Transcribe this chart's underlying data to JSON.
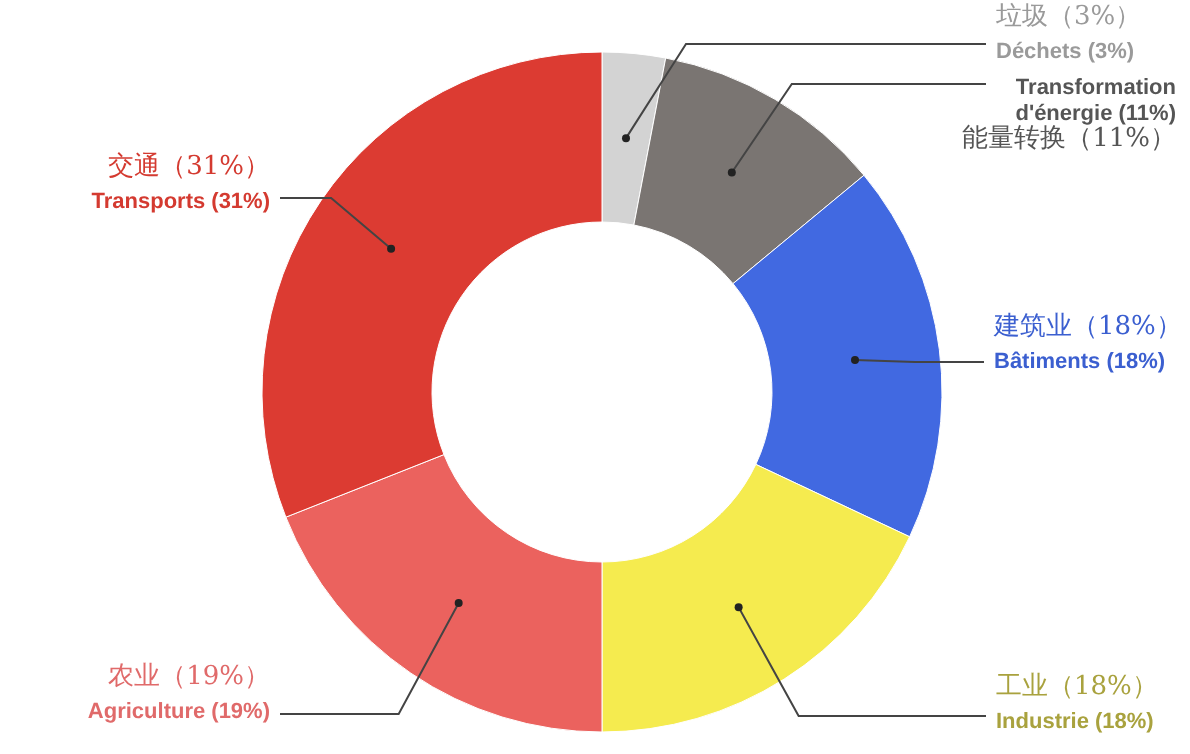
{
  "chart_data": {
    "type": "donut",
    "categories": [
      "垃圾（3%）\nDéchets (3%)",
      "Transformation\nd'énergie (11%)\n能量转换（11%）",
      "建筑业（18%）\nBâtiments (18%)",
      "工业（18%）\nIndustrie (18%)",
      "农业（19%）\nAgriculture (19%)",
      "交通（31%）\nTransports (31%)"
    ],
    "values": [
      3,
      11,
      18,
      18,
      19,
      31
    ],
    "colors": [
      "#d3d3d3",
      "#7a7572",
      "#4169e1",
      "#f5eb4f",
      "#eb625e",
      "#dc3b32"
    ]
  }
}
